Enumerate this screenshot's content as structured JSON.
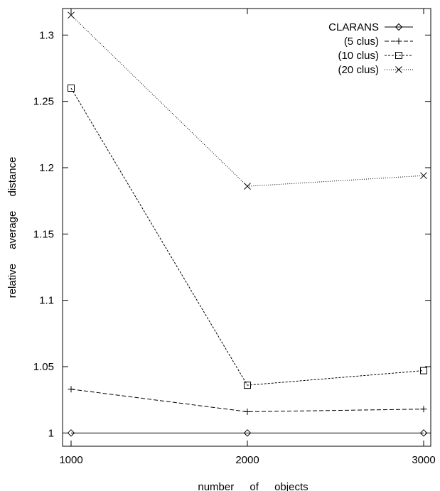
{
  "chart_data": {
    "type": "line",
    "title": "",
    "xlabel": "number of objects",
    "ylabel": "relative average distance",
    "x": [
      1000,
      2000,
      3000
    ],
    "xticks": [
      "1000",
      "2000",
      "3000"
    ],
    "yticks": [
      "1",
      "1.05",
      "1.1",
      "1.15",
      "1.2",
      "1.25",
      "1.3"
    ],
    "xlim": [
      1000,
      3000
    ],
    "ylim": [
      0.99,
      1.32
    ],
    "grid": false,
    "legend_position": "top-right",
    "series": [
      {
        "name": "CLARANS",
        "values": [
          1.0,
          1.0,
          1.0
        ],
        "marker": "diamond",
        "dash": "solid"
      },
      {
        "name": "(5 clus)",
        "values": [
          1.033,
          1.016,
          1.018
        ],
        "marker": "plus",
        "dash": "dashed"
      },
      {
        "name": "(10 clus)",
        "values": [
          1.26,
          1.036,
          1.047
        ],
        "marker": "square",
        "dash": "short-dashed"
      },
      {
        "name": "(20 clus)",
        "values": [
          1.315,
          1.186,
          1.194
        ],
        "marker": "cross",
        "dash": "dotted"
      }
    ]
  }
}
